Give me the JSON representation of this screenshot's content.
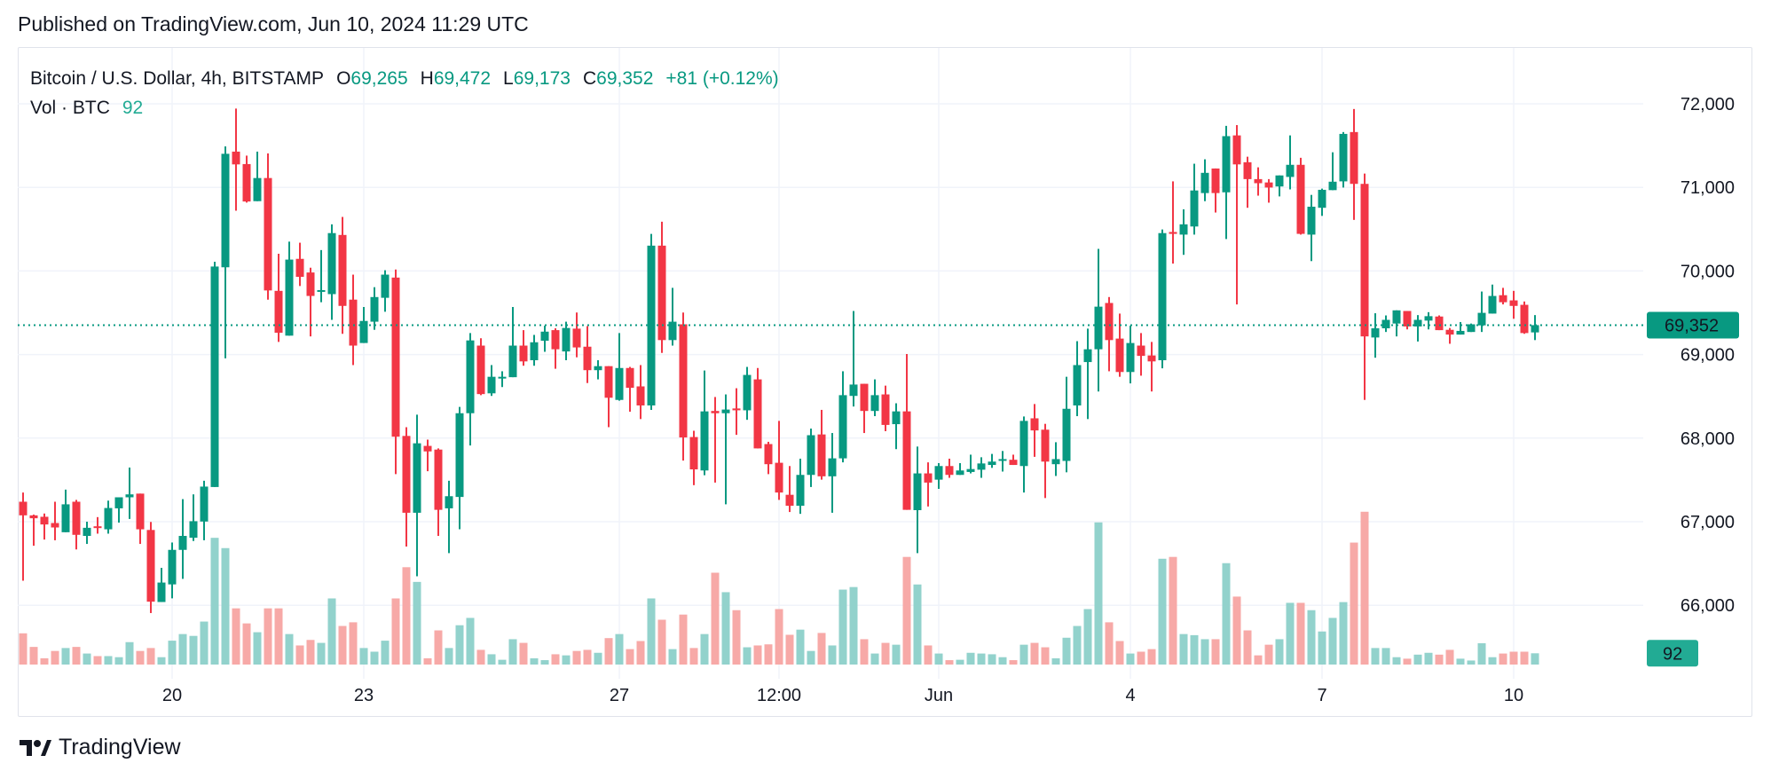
{
  "header": {
    "published": "Published on TradingView.com, Jun 10, 2024 11:29 UTC"
  },
  "legend": {
    "symbol": "Bitcoin / U.S. Dollar, 4h, BITSTAMP",
    "open_label": "O",
    "open": "69,265",
    "high_label": "H",
    "high": "69,472",
    "low_label": "L",
    "low": "69,173",
    "close_label": "C",
    "close": "69,352",
    "change": "+81 (+0.12%)",
    "vol_label": "Vol · BTC",
    "vol_value": "92"
  },
  "brand": {
    "name": "TradingView",
    "icon": "tradingview-logo-icon"
  },
  "colors": {
    "up": "#089981",
    "down": "#F23645",
    "vol_up": "#92D2CC",
    "vol_down": "#F7A9A7",
    "grid": "#F0F3FA",
    "price_label": "#089981",
    "vol_label": "#22AB94"
  },
  "chart_data": {
    "type": "candlestick",
    "title": "Bitcoin / U.S. Dollar, 4h, BITSTAMP",
    "interval": "4h",
    "ylim": [
      65400,
      72300
    ],
    "y_ticks": [
      "72,000",
      "71,000",
      "70,000",
      "69,000",
      "68,000",
      "67,000",
      "66,000"
    ],
    "y_tick_values": [
      72000,
      71000,
      70000,
      69000,
      68000,
      67000,
      66000
    ],
    "x_ticks": [
      {
        "label": "20",
        "time": "2024-05-20 00:00"
      },
      {
        "label": "23",
        "time": "2024-05-23 00:00"
      },
      {
        "label": "27",
        "time": "2024-05-27 00:00"
      },
      {
        "label": "12:00",
        "time": "2024-05-29 12:00"
      },
      {
        "label": "Jun",
        "time": "2024-06-01 00:00"
      },
      {
        "label": "4",
        "time": "2024-06-04 00:00"
      },
      {
        "label": "7",
        "time": "2024-06-07 00:00"
      },
      {
        "label": "10",
        "time": "2024-06-10 00:00"
      }
    ],
    "last_price": 69352,
    "last_price_label": "69,352",
    "last_volume_label": "92",
    "grid": true,
    "columns": [
      "time",
      "open",
      "high",
      "low",
      "close",
      "volume"
    ],
    "candles": [
      [
        "2024-05-17 16:00",
        67239,
        67349,
        66294,
        67076,
        255
      ],
      [
        "2024-05-17 20:00",
        67076,
        67085,
        66712,
        67041,
        144
      ],
      [
        "2024-05-18 00:00",
        67059,
        67098,
        66786,
        66967,
        51
      ],
      [
        "2024-05-18 04:00",
        66984,
        67239,
        66778,
        66931,
        111
      ],
      [
        "2024-05-18 08:00",
        66874,
        67384,
        66874,
        67208,
        135
      ],
      [
        "2024-05-18 12:00",
        67239,
        67261,
        66668,
        66843,
        144
      ],
      [
        "2024-05-18 16:00",
        66830,
        67000,
        66734,
        66927,
        90
      ],
      [
        "2024-05-18 20:00",
        66945,
        67055,
        66857,
        66927,
        69
      ],
      [
        "2024-05-19 00:00",
        66909,
        67252,
        66857,
        67164,
        69
      ],
      [
        "2024-05-19 04:00",
        67160,
        67292,
        66989,
        67292,
        60
      ],
      [
        "2024-05-19 08:00",
        67292,
        67648,
        67033,
        67327,
        183
      ],
      [
        "2024-05-19 12:00",
        67336,
        67336,
        66734,
        66909,
        111
      ],
      [
        "2024-05-19 16:00",
        66901,
        66997,
        65907,
        66043,
        135
      ],
      [
        "2024-05-19 20:00",
        66039,
        66448,
        66039,
        66272,
        60
      ],
      [
        "2024-05-20 00:00",
        66250,
        66751,
        66083,
        66663,
        195
      ],
      [
        "2024-05-20 04:00",
        66663,
        67270,
        66316,
        66830,
        249
      ],
      [
        "2024-05-20 08:00",
        66808,
        67327,
        66769,
        67006,
        234
      ],
      [
        "2024-05-20 12:00",
        67002,
        67490,
        66778,
        67420,
        351
      ],
      [
        "2024-05-20 16:00",
        67415,
        70110,
        67415,
        70053,
        1035
      ],
      [
        "2024-05-20 20:00",
        70044,
        71490,
        68954,
        71402,
        951
      ],
      [
        "2024-05-21 00:00",
        71428,
        71943,
        70721,
        71275,
        459
      ],
      [
        "2024-05-21 04:00",
        71279,
        71380,
        70818,
        70831,
        336
      ],
      [
        "2024-05-21 08:00",
        70835,
        71428,
        70835,
        71112,
        264
      ],
      [
        "2024-05-21 12:00",
        71112,
        71407,
        69657,
        69767,
        459
      ],
      [
        "2024-05-21 16:00",
        69762,
        70206,
        69151,
        69261,
        459
      ],
      [
        "2024-05-21 20:00",
        69226,
        70351,
        69226,
        70136,
        249
      ],
      [
        "2024-05-22 00:00",
        70145,
        70338,
        69820,
        69930,
        156
      ],
      [
        "2024-05-22 04:00",
        69982,
        70039,
        69217,
        69701,
        201
      ],
      [
        "2024-05-22 08:00",
        69754,
        70250,
        69626,
        69771,
        177
      ],
      [
        "2024-05-22 12:00",
        69723,
        70558,
        69415,
        70453,
        540
      ],
      [
        "2024-05-22 16:00",
        70431,
        70646,
        69248,
        69582,
        315
      ],
      [
        "2024-05-22 20:00",
        69657,
        69956,
        68874,
        69107,
        345
      ],
      [
        "2024-05-23 00:00",
        69138,
        69569,
        69138,
        69402,
        135
      ],
      [
        "2024-05-23 04:00",
        69393,
        69806,
        69296,
        69688,
        105
      ],
      [
        "2024-05-23 08:00",
        69679,
        70009,
        69512,
        69956,
        195
      ],
      [
        "2024-05-23 12:00",
        69921,
        70017,
        67569,
        68017,
        540
      ],
      [
        "2024-05-23 16:00",
        68026,
        68131,
        66703,
        67107,
        795
      ],
      [
        "2024-05-23 20:00",
        67107,
        68281,
        66347,
        67938,
        675
      ],
      [
        "2024-05-24 00:00",
        67907,
        67982,
        67604,
        67841,
        51
      ],
      [
        "2024-05-24 04:00",
        67863,
        67877,
        66830,
        67142,
        279
      ],
      [
        "2024-05-24 08:00",
        67160,
        67490,
        66624,
        67305,
        135
      ],
      [
        "2024-05-24 12:00",
        67296,
        68373,
        66910,
        68298,
        321
      ],
      [
        "2024-05-24 16:00",
        68298,
        69257,
        67912,
        69169,
        381
      ],
      [
        "2024-05-24 20:00",
        69107,
        69195,
        68514,
        68527,
        120
      ],
      [
        "2024-05-25 00:00",
        68536,
        68874,
        68505,
        68734,
        84
      ],
      [
        "2024-05-25 04:00",
        68716,
        68800,
        68611,
        68734,
        39
      ],
      [
        "2024-05-25 08:00",
        68729,
        69569,
        68729,
        69107,
        207
      ],
      [
        "2024-05-25 12:00",
        69107,
        69292,
        68866,
        68918,
        177
      ],
      [
        "2024-05-25 16:00",
        68932,
        69235,
        68866,
        69147,
        51
      ],
      [
        "2024-05-25 20:00",
        69165,
        69345,
        69033,
        69274,
        36
      ],
      [
        "2024-05-26 00:00",
        69292,
        69314,
        68830,
        69063,
        84
      ],
      [
        "2024-05-26 04:00",
        69037,
        69393,
        68932,
        69318,
        75
      ],
      [
        "2024-05-26 08:00",
        69310,
        69503,
        68967,
        69085,
        111
      ],
      [
        "2024-05-26 12:00",
        69094,
        69340,
        68659,
        68813,
        120
      ],
      [
        "2024-05-26 16:00",
        68813,
        68932,
        68703,
        68861,
        96
      ],
      [
        "2024-05-26 20:00",
        68861,
        68861,
        68131,
        68483,
        216
      ],
      [
        "2024-05-27 00:00",
        68457,
        69257,
        68448,
        68839,
        249
      ],
      [
        "2024-05-27 04:00",
        68839,
        68852,
        68316,
        68602,
        126
      ],
      [
        "2024-05-27 08:00",
        68619,
        68874,
        68228,
        68391,
        192
      ],
      [
        "2024-05-27 12:00",
        68391,
        70444,
        68338,
        70303,
        540
      ],
      [
        "2024-05-27 16:00",
        70303,
        70589,
        69020,
        69173,
        366
      ],
      [
        "2024-05-27 20:00",
        69173,
        69798,
        69107,
        69393,
        126
      ],
      [
        "2024-05-28 00:00",
        69362,
        69503,
        67731,
        68008,
        408
      ],
      [
        "2024-05-28 04:00",
        68013,
        68088,
        67437,
        67626,
        135
      ],
      [
        "2024-05-28 08:00",
        67613,
        68809,
        67556,
        68320,
        249
      ],
      [
        "2024-05-28 12:00",
        68325,
        68492,
        67468,
        68298,
        750
      ],
      [
        "2024-05-28 16:00",
        68298,
        68523,
        67208,
        68342,
        591
      ],
      [
        "2024-05-28 20:00",
        68355,
        68597,
        68039,
        68333,
        444
      ],
      [
        "2024-05-29 00:00",
        68333,
        68852,
        68219,
        68756,
        141
      ],
      [
        "2024-05-29 04:00",
        68703,
        68839,
        67877,
        67877,
        156
      ],
      [
        "2024-05-29 08:00",
        67929,
        67956,
        67569,
        67688,
        165
      ],
      [
        "2024-05-29 12:00",
        67705,
        68206,
        67261,
        67349,
        453
      ],
      [
        "2024-05-29 16:00",
        67322,
        67666,
        67116,
        67191,
        243
      ],
      [
        "2024-05-29 20:00",
        67191,
        67754,
        67094,
        67560,
        285
      ],
      [
        "2024-05-30 00:00",
        67560,
        68114,
        67415,
        68035,
        111
      ],
      [
        "2024-05-30 04:00",
        68044,
        68338,
        67503,
        67543,
        258
      ],
      [
        "2024-05-30 08:00",
        67543,
        68061,
        67107,
        67758,
        156
      ],
      [
        "2024-05-30 12:00",
        67758,
        68800,
        67710,
        68514,
        612
      ],
      [
        "2024-05-30 16:00",
        68505,
        69521,
        68378,
        68641,
        633
      ],
      [
        "2024-05-30 20:00",
        68650,
        68650,
        68061,
        68325,
        207
      ],
      [
        "2024-05-31 00:00",
        68325,
        68703,
        68263,
        68514,
        90
      ],
      [
        "2024-05-31 04:00",
        68523,
        68628,
        68083,
        68158,
        177
      ],
      [
        "2024-05-31 08:00",
        68167,
        68417,
        67868,
        68320,
        162
      ],
      [
        "2024-05-31 12:00",
        68320,
        69006,
        67142,
        67142,
        879
      ],
      [
        "2024-05-31 16:00",
        67138,
        67899,
        66624,
        67578,
        654
      ],
      [
        "2024-05-31 20:00",
        67578,
        67710,
        67182,
        67468,
        156
      ],
      [
        "2024-06-01 00:00",
        67503,
        67701,
        67393,
        67666,
        90
      ],
      [
        "2024-06-01 04:00",
        67666,
        67754,
        67525,
        67560,
        36
      ],
      [
        "2024-06-01 08:00",
        67560,
        67701,
        67560,
        67613,
        39
      ],
      [
        "2024-06-01 12:00",
        67595,
        67802,
        67578,
        67630,
        96
      ],
      [
        "2024-06-01 16:00",
        67622,
        67771,
        67525,
        67697,
        90
      ],
      [
        "2024-06-01 20:00",
        67679,
        67811,
        67644,
        67719,
        84
      ],
      [
        "2024-06-02 00:00",
        67732,
        67846,
        67600,
        67749,
        60
      ],
      [
        "2024-06-02 04:00",
        67741,
        67802,
        67679,
        67679,
        36
      ],
      [
        "2024-06-02 08:00",
        67666,
        68259,
        67349,
        68206,
        162
      ],
      [
        "2024-06-02 12:00",
        68237,
        68408,
        67776,
        68092,
        177
      ],
      [
        "2024-06-02 16:00",
        68101,
        68171,
        67283,
        67719,
        141
      ],
      [
        "2024-06-02 20:00",
        67688,
        67951,
        67547,
        67749,
        51
      ],
      [
        "2024-06-03 00:00",
        67727,
        68734,
        67591,
        68351,
        219
      ],
      [
        "2024-06-03 04:00",
        68391,
        69160,
        68263,
        68874,
        315
      ],
      [
        "2024-06-03 08:00",
        68910,
        69310,
        68228,
        69063,
        453
      ],
      [
        "2024-06-03 12:00",
        69063,
        70264,
        68558,
        69573,
        1161
      ],
      [
        "2024-06-03 16:00",
        69617,
        69688,
        68800,
        69173,
        345
      ],
      [
        "2024-06-03 20:00",
        69191,
        69490,
        68734,
        68791,
        192
      ],
      [
        "2024-06-04 00:00",
        68791,
        69345,
        68655,
        69138,
        90
      ],
      [
        "2024-06-04 04:00",
        69107,
        69257,
        68747,
        68984,
        105
      ],
      [
        "2024-06-04 08:00",
        68989,
        69151,
        68558,
        68918,
        126
      ],
      [
        "2024-06-04 12:00",
        68932,
        70497,
        68835,
        70453,
        864
      ],
      [
        "2024-06-04 16:00",
        70466,
        71072,
        70088,
        70444,
        879
      ],
      [
        "2024-06-04 20:00",
        70435,
        70738,
        70193,
        70558,
        249
      ],
      [
        "2024-06-05 00:00",
        70532,
        71283,
        70435,
        70963,
        240
      ],
      [
        "2024-06-05 04:00",
        70932,
        71336,
        70835,
        71174,
        207
      ],
      [
        "2024-06-05 08:00",
        71226,
        71226,
        70699,
        70932,
        207
      ],
      [
        "2024-06-05 12:00",
        70941,
        71736,
        70382,
        71613,
        828
      ],
      [
        "2024-06-05 16:00",
        71622,
        71745,
        69600,
        71275,
        555
      ],
      [
        "2024-06-05 20:00",
        71301,
        71367,
        70756,
        71099,
        279
      ],
      [
        "2024-06-06 00:00",
        71099,
        71240,
        70901,
        71050,
        75
      ],
      [
        "2024-06-06 04:00",
        71059,
        71099,
        70817,
        70998,
        162
      ],
      [
        "2024-06-06 08:00",
        71011,
        71143,
        70892,
        71143,
        207
      ],
      [
        "2024-06-06 12:00",
        71125,
        71622,
        70976,
        71270,
        504
      ],
      [
        "2024-06-06 16:00",
        71270,
        71354,
        70435,
        70444,
        504
      ],
      [
        "2024-06-06 20:00",
        70435,
        70910,
        70118,
        70769,
        444
      ],
      [
        "2024-06-07 00:00",
        70756,
        70985,
        70659,
        70971,
        270
      ],
      [
        "2024-06-07 04:00",
        70967,
        71420,
        70967,
        71068,
        381
      ],
      [
        "2024-06-07 08:00",
        71072,
        71662,
        70998,
        71640,
        510
      ],
      [
        "2024-06-07 12:00",
        71662,
        71938,
        70611,
        71042,
        996
      ],
      [
        "2024-06-07 16:00",
        71042,
        71165,
        68457,
        69217,
        1248
      ],
      [
        "2024-06-07 20:00",
        69204,
        69494,
        68962,
        69314,
        135
      ],
      [
        "2024-06-08 00:00",
        69314,
        69468,
        69270,
        69415,
        135
      ],
      [
        "2024-06-08 04:00",
        69371,
        69529,
        69217,
        69529,
        60
      ],
      [
        "2024-06-08 08:00",
        69521,
        69521,
        69301,
        69336,
        48
      ],
      [
        "2024-06-08 12:00",
        69336,
        69472,
        69156,
        69415,
        81
      ],
      [
        "2024-06-08 16:00",
        69406,
        69507,
        69301,
        69459,
        96
      ],
      [
        "2024-06-08 20:00",
        69455,
        69468,
        69292,
        69292,
        81
      ],
      [
        "2024-06-09 00:00",
        69296,
        69318,
        69129,
        69239,
        120
      ],
      [
        "2024-06-09 04:00",
        69239,
        69389,
        69239,
        69283,
        48
      ],
      [
        "2024-06-09 08:00",
        69270,
        69371,
        69270,
        69362,
        33
      ],
      [
        "2024-06-09 12:00",
        69349,
        69754,
        69270,
        69499,
        174
      ],
      [
        "2024-06-09 16:00",
        69490,
        69837,
        69490,
        69701,
        60
      ],
      [
        "2024-06-09 20:00",
        69710,
        69798,
        69600,
        69626,
        90
      ],
      [
        "2024-06-10 00:00",
        69648,
        69762,
        69428,
        69582,
        105
      ],
      [
        "2024-06-10 04:00",
        69595,
        69635,
        69248,
        69257,
        105
      ],
      [
        "2024-06-10 08:00",
        69265,
        69472,
        69173,
        69352,
        92
      ]
    ]
  }
}
